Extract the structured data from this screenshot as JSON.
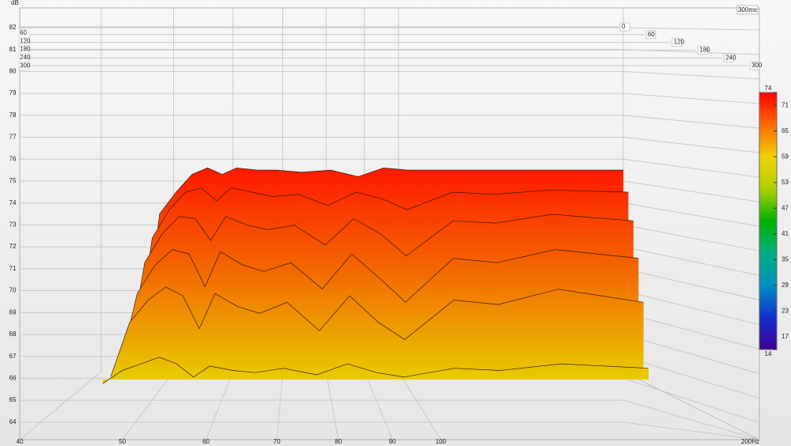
{
  "chart_data": {
    "type": "waterfall",
    "ylabel": "dB",
    "x": [
      48,
      50,
      52,
      54,
      56,
      58,
      60,
      63,
      66,
      70,
      75,
      80,
      85,
      90,
      100,
      110,
      125,
      150
    ],
    "series": [
      {
        "time": 0,
        "values": [
          67.0,
          73.5,
          74.5,
          75.3,
          75.6,
          75.3,
          75.6,
          75.5,
          75.5,
          75.4,
          75.5,
          75.2,
          75.6,
          75.5,
          75.5,
          75.5,
          75.5,
          75.5
        ]
      },
      {
        "time": 60,
        "values": [
          66.8,
          72.5,
          73.8,
          74.6,
          74.8,
          74.2,
          74.8,
          74.6,
          74.4,
          74.5,
          74.0,
          74.6,
          74.3,
          73.8,
          74.6,
          74.5,
          74.7,
          74.6
        ]
      },
      {
        "time": 120,
        "values": [
          66.7,
          71.5,
          72.8,
          73.6,
          73.5,
          72.5,
          73.6,
          73.2,
          73.0,
          73.2,
          72.3,
          73.5,
          72.8,
          71.8,
          73.4,
          73.3,
          73.7,
          73.4
        ]
      },
      {
        "time": 180,
        "values": [
          66.6,
          70.2,
          71.5,
          72.2,
          72.0,
          70.5,
          72.1,
          71.5,
          71.2,
          71.6,
          70.4,
          72.0,
          70.9,
          69.8,
          71.8,
          71.6,
          72.2,
          71.8
        ]
      },
      {
        "time": 240,
        "values": [
          66.5,
          69.0,
          70.0,
          70.6,
          70.2,
          68.7,
          70.3,
          69.7,
          69.4,
          69.9,
          68.6,
          70.2,
          69.0,
          68.2,
          70.0,
          69.8,
          70.5,
          69.9
        ]
      },
      {
        "time": 300,
        "values": [
          66.3,
          66.9,
          67.2,
          67.5,
          67.2,
          66.6,
          67.1,
          66.9,
          66.8,
          67.0,
          66.7,
          67.2,
          66.8,
          66.6,
          67.0,
          66.9,
          67.2,
          67.0
        ]
      }
    ],
    "xlim": [
      40,
      200
    ],
    "xticks": [
      40,
      50,
      60,
      70,
      80,
      90,
      100,
      {
        "value": 200,
        "label": "200Hz"
      }
    ],
    "log_x": true,
    "ylim": [
      63.2,
      82.9
    ],
    "yticks": [
      64,
      65,
      66,
      67,
      68,
      69,
      70,
      71,
      72,
      73,
      74,
      75,
      76,
      77,
      78,
      79,
      80,
      81,
      82
    ],
    "zlim": [
      0,
      300
    ],
    "zticks": [
      0,
      60,
      120,
      180,
      240,
      300
    ],
    "zunit_label": "300ms",
    "depth_labels": [
      "60",
      "120",
      "180",
      "240",
      "300"
    ],
    "surface_colors": [
      "#ff1a00",
      "#f26a00",
      "#e8c800"
    ],
    "clim": [
      14,
      74
    ],
    "cticks": [
      74,
      71,
      65,
      59,
      53,
      47,
      41,
      35,
      29,
      23,
      17,
      14
    ],
    "colormap": [
      "#ff0000",
      "#ff6a00",
      "#f0d000",
      "#b0d000",
      "#00b000",
      "#00b080",
      "#0090c0",
      "#1030d0",
      "#400090"
    ],
    "grid": true
  }
}
